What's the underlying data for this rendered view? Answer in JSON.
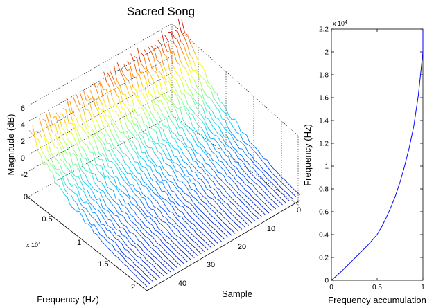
{
  "chart_data": [
    {
      "type": "surface",
      "title": "Sacred Song",
      "xlabel": "Frequency (Hz)",
      "ylabel": "Sample",
      "zlabel": "Magnitude (dB)",
      "x_ticks": [
        "0",
        "0.5",
        "1",
        "1.5",
        "2"
      ],
      "x_exponent": "x 10^4",
      "y_ticks": [
        "0",
        "10",
        "20",
        "30",
        "40"
      ],
      "z_ticks": [
        "6",
        "4",
        "2",
        "0",
        "-2"
      ],
      "xlim": [
        0,
        20000
      ],
      "ylim": [
        0,
        45
      ],
      "zlim": [
        -4,
        6
      ],
      "colormap": [
        "#00008f",
        "#0050ff",
        "#00c8ff",
        "#70ff90",
        "#ffff00",
        "#ff8000",
        "#d00000"
      ],
      "grid": true
    },
    {
      "type": "line",
      "xlabel": "Frequency accumulation",
      "ylabel": "Frequency (Hz)",
      "x_ticks": [
        "0",
        "0.5",
        "1"
      ],
      "y_ticks": [
        "0",
        "0.2",
        "0.4",
        "0.6",
        "0.8",
        "1",
        "1.2",
        "1.4",
        "1.6",
        "1.8",
        "2",
        "2.2"
      ],
      "y_exponent": "x 10^4",
      "xlim": [
        0,
        1
      ],
      "ylim": [
        0,
        2.2
      ],
      "series": [
        {
          "color": "#0000ff",
          "x": [
            0,
            0.1,
            0.2,
            0.3,
            0.4,
            0.5,
            0.55,
            0.6,
            0.65,
            0.7,
            0.75,
            0.8,
            0.85,
            0.9,
            0.95,
            0.98,
            1.0,
            1.0
          ],
          "y": [
            0,
            0.07,
            0.15,
            0.23,
            0.31,
            0.4,
            0.47,
            0.55,
            0.64,
            0.74,
            0.86,
            1.0,
            1.16,
            1.35,
            1.62,
            1.85,
            2.0,
            2.2
          ]
        }
      ]
    }
  ]
}
